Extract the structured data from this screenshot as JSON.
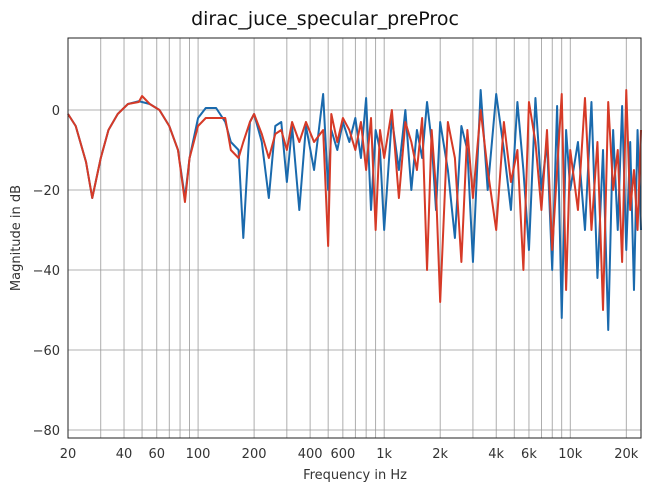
{
  "chart_data": {
    "type": "line",
    "title": "dirac_juce_specular_preProc",
    "xlabel": "Frequency in Hz",
    "ylabel": "Magnitude in dB",
    "xscale": "log",
    "grid": true,
    "xlim": [
      20,
      24000
    ],
    "ylim": [
      -82,
      18
    ],
    "xticks": [
      20,
      40,
      60,
      100,
      200,
      400,
      600,
      {
        "value": 1000,
        "label": "1k"
      },
      {
        "value": 2000,
        "label": "2k"
      },
      {
        "value": 4000,
        "label": "4k"
      },
      {
        "value": 6000,
        "label": "6k"
      },
      {
        "value": 10000,
        "label": "10k"
      },
      {
        "value": 20000,
        "label": "20k"
      }
    ],
    "xminor": [
      30,
      50,
      70,
      80,
      90,
      300,
      500,
      700,
      800,
      900,
      3000,
      5000,
      7000,
      8000,
      9000
    ],
    "yticks": [
      {
        "value": -80,
        "label": "−80"
      },
      {
        "value": -60,
        "label": "−60"
      },
      {
        "value": -40,
        "label": "−40"
      },
      {
        "value": -20,
        "label": "−20"
      },
      0
    ],
    "x": [
      20,
      22,
      25,
      27,
      30,
      33,
      37,
      42,
      48,
      50,
      55,
      62,
      70,
      78,
      85,
      90,
      100,
      110,
      125,
      140,
      150,
      165,
      175,
      190,
      200,
      220,
      240,
      260,
      280,
      300,
      320,
      350,
      380,
      420,
      470,
      500,
      520,
      560,
      600,
      650,
      700,
      750,
      800,
      850,
      900,
      950,
      1000,
      1100,
      1200,
      1300,
      1400,
      1500,
      1600,
      1700,
      1800,
      1900,
      2000,
      2200,
      2400,
      2600,
      2800,
      3000,
      3300,
      3600,
      4000,
      4400,
      4800,
      5200,
      5600,
      6000,
      6500,
      7000,
      7500,
      8000,
      8500,
      9000,
      9500,
      10000,
      11000,
      12000,
      13000,
      14000,
      15000,
      16000,
      17000,
      18000,
      19000,
      20000,
      21000,
      22000,
      23000,
      24000
    ],
    "series": [
      {
        "color": "#1a6aad",
        "values": [
          -1,
          -4,
          -13,
          -22,
          -12,
          -5,
          -1,
          1.5,
          2.2,
          2,
          1.5,
          0,
          -4,
          -10,
          -22,
          -12,
          -2,
          0.5,
          0.5,
          -3,
          -8,
          -10,
          -32,
          -3,
          -1,
          -8,
          -22,
          -4,
          -3,
          -18,
          -4,
          -25,
          -4,
          -15,
          4,
          -20,
          -5,
          -10,
          -3,
          -8,
          -2,
          -12,
          3,
          -25,
          -5,
          -10,
          -30,
          -2,
          -15,
          0,
          -20,
          -5,
          -12,
          2,
          -8,
          -25,
          -3,
          -15,
          -32,
          -4,
          -10,
          -38,
          5,
          -20,
          4,
          -10,
          -25,
          2,
          -15,
          -35,
          3,
          -20,
          -8,
          -40,
          1,
          -52,
          -5,
          -20,
          -8,
          -30,
          2,
          -42,
          -10,
          -55,
          -5,
          -30,
          1,
          -35,
          -8,
          -45,
          -5,
          -30
        ]
      },
      {
        "color": "#d63a27",
        "values": [
          -1,
          -4,
          -13,
          -22,
          -12,
          -5,
          -1,
          1.5,
          2,
          3.5,
          1.5,
          0,
          -4,
          -10,
          -23,
          -12,
          -4,
          -2,
          -2,
          -2,
          -10,
          -12,
          -8,
          -3,
          -1,
          -6,
          -12,
          -6,
          -5,
          -10,
          -3,
          -8,
          -3,
          -8,
          -5,
          -34,
          -1,
          -8,
          -2,
          -5,
          -10,
          -3,
          -15,
          -2,
          -30,
          -5,
          -12,
          0,
          -22,
          -3,
          -8,
          -15,
          -2,
          -40,
          -5,
          -20,
          -48,
          -3,
          -12,
          -38,
          -5,
          -22,
          0,
          -15,
          -30,
          -3,
          -18,
          -10,
          -40,
          2,
          -8,
          -25,
          -5,
          -35,
          -15,
          4,
          -45,
          -10,
          -25,
          3,
          -30,
          -8,
          -50,
          2,
          -20,
          -10,
          -38,
          5,
          -25,
          -15,
          -30,
          -5
        ]
      }
    ]
  }
}
